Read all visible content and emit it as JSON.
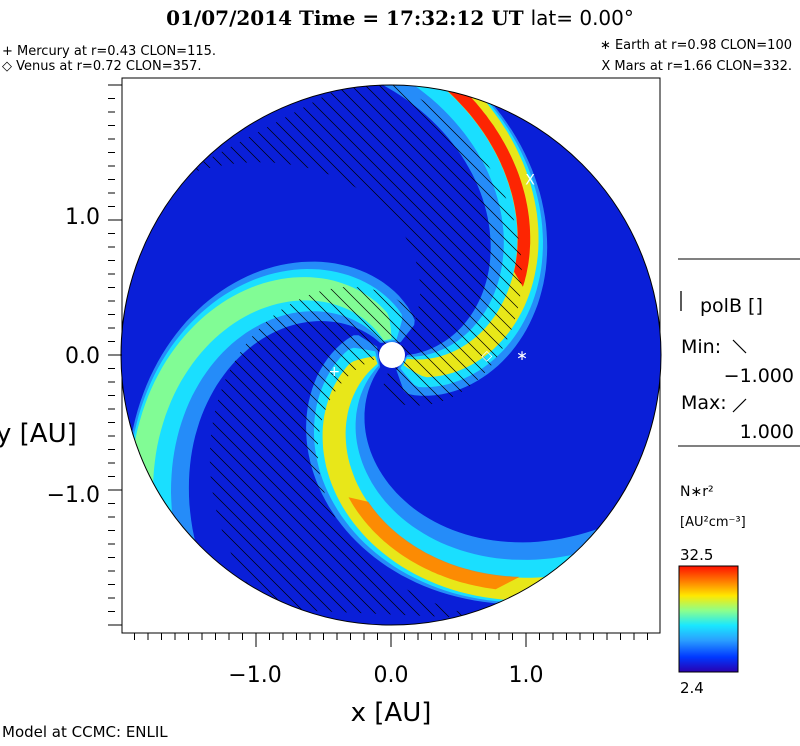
{
  "title": {
    "date": "01/07/2014",
    "time_text": "Time = 17:32:12 UT",
    "lat_text": "lat= 0.00°"
  },
  "planets": {
    "mercury": "+ Mercury at r=0.43 CLON=115.",
    "venus": "◇ Venus at r=0.72 CLON=357.",
    "earth": "∗ Earth at  r=0.98 CLON=100",
    "mars": "X Mars at r=1.66 CLON=332."
  },
  "side_panel": {
    "field": "polB []",
    "min_label": "Min:",
    "min_value": "−1.000",
    "max_label": "Max:",
    "max_value": "1.000"
  },
  "colorbar": {
    "quantity": "N∗r²",
    "units": "[AU²cm⁻³]",
    "max": "32.5",
    "min": "2.4"
  },
  "footer": "Model at CCMC: ENLIL",
  "chart_data": {
    "type": "heatmap",
    "xlabel": "x [AU]",
    "ylabel": "y [AU]",
    "x_ticks": [
      "−1.0",
      "0.0",
      "1.0"
    ],
    "y_ticks": [
      "1.0",
      "0.0",
      "−1.0"
    ],
    "xlim": [
      -2.0,
      2.0
    ],
    "ylim": [
      -2.0,
      2.0
    ],
    "domain_radius_au": 2.0,
    "inner_boundary_au": 0.1,
    "colormap": [
      "#2a00b0",
      "#0038ff",
      "#2aa0ff",
      "#19e8ff",
      "#8dff8a",
      "#ffe800",
      "#ff7a00",
      "#ff1000"
    ],
    "scale_min": 2.4,
    "scale_max": 32.5,
    "bodies": [
      {
        "name": "Mercury",
        "marker": "+",
        "x": -0.42,
        "y": -0.12
      },
      {
        "name": "Venus",
        "marker": "◇",
        "x": 0.71,
        "y": 0.0
      },
      {
        "name": "Earth",
        "marker": "∗",
        "x": 0.97,
        "y": 0.0
      },
      {
        "name": "Mars",
        "marker": "X",
        "x": 1.03,
        "y": 1.3
      }
    ]
  }
}
